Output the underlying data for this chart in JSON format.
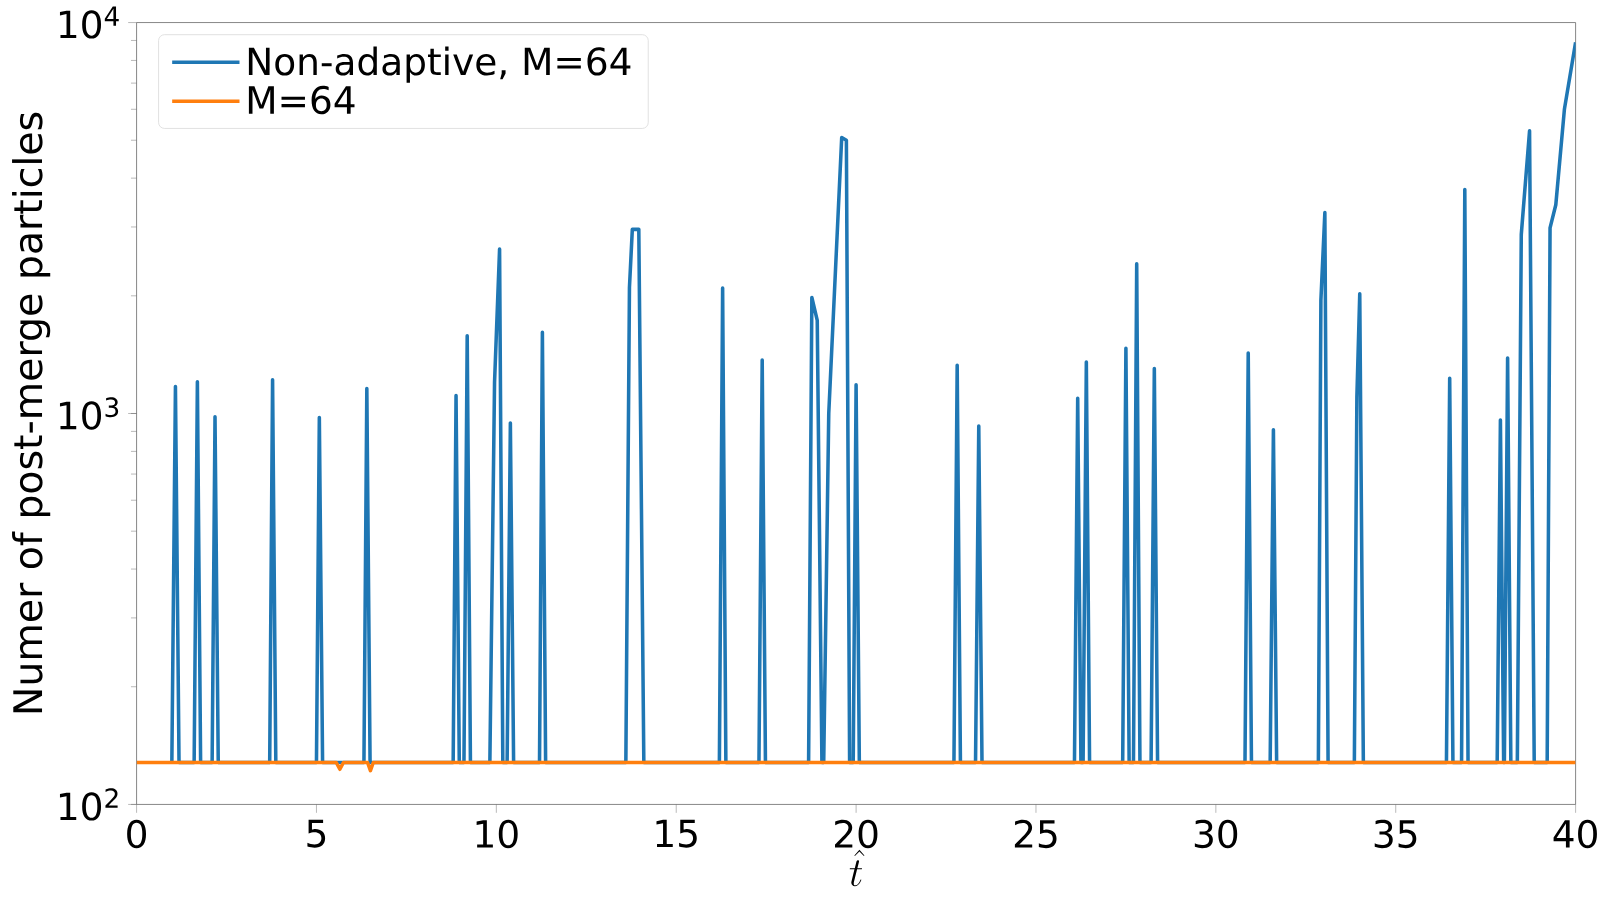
{
  "chart_data": {
    "type": "line",
    "xlabel": "\\hat{t}",
    "ylabel": "Numer of post-merge particles",
    "log": "y",
    "legend": "top left",
    "marker": "none",
    "line_style": "solid",
    "grid": false,
    "xlim": [
      0,
      40
    ],
    "ylim": [
      100,
      10000
    ],
    "xticks": [
      0,
      5,
      10,
      15,
      20,
      25,
      30,
      35,
      40
    ],
    "yticks": [
      {
        "value": 100,
        "label": "10$^{2}$"
      },
      {
        "value": 1000,
        "label": "10$^{3}$"
      },
      {
        "value": 10000,
        "label": "10$^{4}$"
      }
    ],
    "series": [
      {
        "name": "Non-adaptive, M=64",
        "color": "#1f77b4",
        "x": [
          0.98,
          1.08,
          1.18,
          1.6,
          1.69,
          1.78,
          2.1,
          2.18,
          2.27,
          3.7,
          3.78,
          3.87,
          5.0,
          5.08,
          5.17,
          6.32,
          6.4,
          6.49,
          8.8,
          8.88,
          8.97,
          9.1,
          9.19,
          9.28,
          9.82,
          9.95,
          10.09,
          10.18,
          10.3,
          10.39,
          10.48,
          11.2,
          11.28,
          11.37,
          13.6,
          13.7,
          13.78,
          13.96,
          14.1,
          16.2,
          16.29,
          16.38,
          17.3,
          17.39,
          17.48,
          18.68,
          18.77,
          18.92,
          19.05,
          19.1,
          19.24,
          19.6,
          19.73,
          19.82,
          19.92,
          20.0,
          20.09,
          22.72,
          22.81,
          22.9,
          23.32,
          23.41,
          23.5,
          26.07,
          26.16,
          26.25,
          26.31,
          26.4,
          26.49,
          27.41,
          27.5,
          27.59,
          27.71,
          27.8,
          27.89,
          28.2,
          28.29,
          28.38,
          30.81,
          30.9,
          30.99,
          31.51,
          31.6,
          31.69,
          32.85,
          32.92,
          33.03,
          33.12,
          33.85,
          33.92,
          34.0,
          34.1,
          36.41,
          36.5,
          36.59,
          36.83,
          36.92,
          37.01,
          37.82,
          37.91,
          38.0,
          38.02,
          38.11,
          38.2,
          38.38,
          38.49,
          38.72,
          38.85,
          39.21,
          39.29,
          39.45,
          39.69,
          40.0
        ],
        "values": [
          128,
          1172,
          128,
          128,
          1205,
          128,
          128,
          981,
          128,
          128,
          1219,
          128,
          128,
          977,
          128,
          128,
          1159,
          128,
          128,
          1111,
          128,
          128,
          1581,
          128,
          128,
          1200,
          2634,
          128,
          128,
          945,
          128,
          128,
          1614,
          128,
          128,
          2100,
          2958,
          2958,
          128,
          128,
          2093,
          128,
          128,
          1371,
          128,
          128,
          1981,
          1730,
          128,
          128,
          1000,
          5080,
          5000,
          128,
          128,
          1184,
          128,
          128,
          1328,
          128,
          128,
          929,
          128,
          128,
          1094,
          128,
          128,
          1354,
          128,
          128,
          1469,
          128,
          128,
          2415,
          128,
          128,
          1303,
          128,
          128,
          1429,
          128,
          128,
          908,
          128,
          128,
          1950,
          3267,
          128,
          128,
          1100,
          2025,
          128,
          128,
          1230,
          128,
          128,
          3742,
          128,
          128,
          962,
          128,
          128,
          1387,
          128,
          128,
          2870,
          5285,
          128,
          128,
          2985,
          3420,
          6012,
          8900
        ]
      },
      {
        "name": "M=64",
        "color": "#ff7f0e",
        "x": [
          0,
          5.55,
          5.65,
          5.75,
          6.42,
          6.5,
          6.58,
          40
        ],
        "values": [
          128,
          128,
          123,
          128,
          128,
          122,
          128,
          128
        ]
      }
    ]
  }
}
